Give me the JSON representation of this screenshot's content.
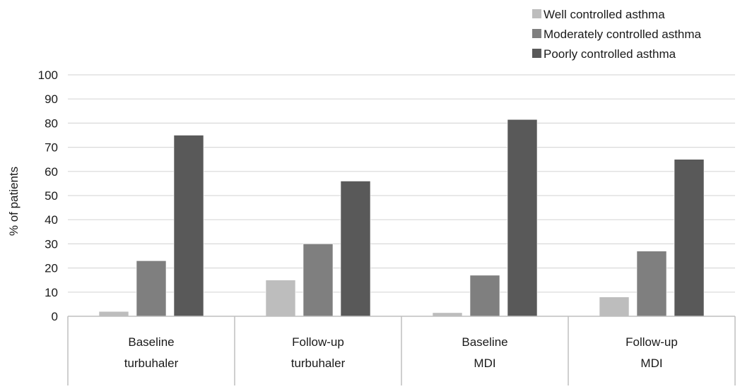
{
  "chart_data": {
    "type": "bar",
    "title": "",
    "xlabel": "",
    "ylabel": "% of patients",
    "ylim": [
      0,
      100
    ],
    "yticks": [
      0,
      10,
      20,
      30,
      40,
      50,
      60,
      70,
      80,
      90,
      100
    ],
    "grid": true,
    "legend_position": "top-right",
    "categories": [
      [
        "Baseline",
        "turbuhaler"
      ],
      [
        "Follow-up",
        "turbuhaler"
      ],
      [
        "Baseline",
        "MDI"
      ],
      [
        "Follow-up",
        "MDI"
      ]
    ],
    "series": [
      {
        "name": "Well controlled asthma",
        "color": "#bdbdbd",
        "values": [
          2,
          15,
          1.5,
          8
        ]
      },
      {
        "name": "Moderately controlled asthma",
        "color": "#7f7f7f",
        "values": [
          23,
          30,
          17,
          27
        ]
      },
      {
        "name": "Poorly controlled asthma",
        "color": "#595959",
        "values": [
          75,
          56,
          81.5,
          65
        ]
      }
    ]
  }
}
